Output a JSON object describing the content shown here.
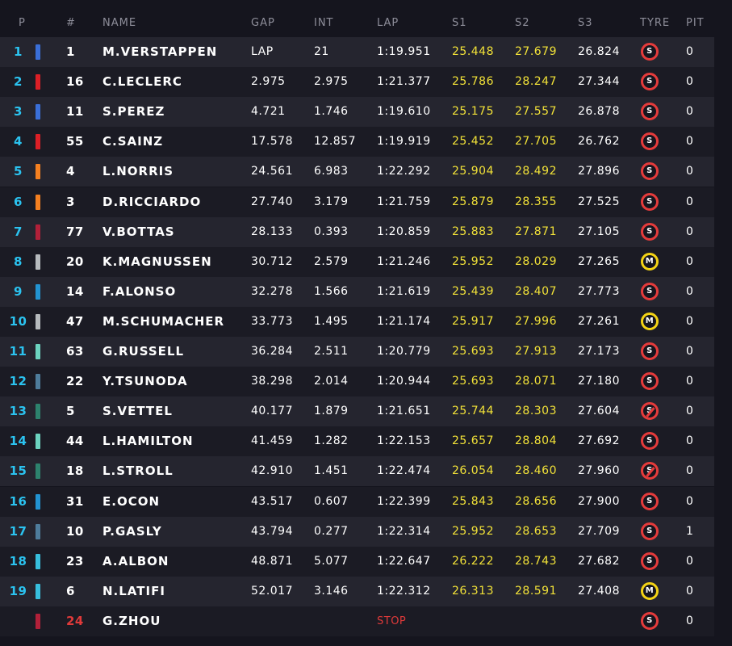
{
  "headers": {
    "pos": "P",
    "num": "#",
    "name": "NAME",
    "gap": "GAP",
    "int": "INT",
    "lap": "LAP",
    "s1": "S1",
    "s2": "S2",
    "s3": "S3",
    "tyre": "TYRE",
    "pit": "PIT"
  },
  "rows": [
    {
      "pos": "1",
      "num": "1",
      "name": "M.VERSTAPPEN",
      "gap": "LAP",
      "int": "21",
      "lap": "1:19.951",
      "s1": "25.448",
      "s2": "27.679",
      "s3": "26.824",
      "tyre": "S",
      "pit": "0",
      "color": "#3a6fd8"
    },
    {
      "pos": "2",
      "num": "16",
      "name": "C.LECLERC",
      "gap": "2.975",
      "int": "2.975",
      "lap": "1:21.377",
      "s1": "25.786",
      "s2": "28.247",
      "s3": "27.344",
      "tyre": "S",
      "pit": "0",
      "color": "#dc1f26"
    },
    {
      "pos": "3",
      "num": "11",
      "name": "S.PEREZ",
      "gap": "4.721",
      "int": "1.746",
      "lap": "1:19.610",
      "s1": "25.175",
      "s2": "27.557",
      "s3": "26.878",
      "tyre": "S",
      "pit": "0",
      "color": "#3a6fd8"
    },
    {
      "pos": "4",
      "num": "55",
      "name": "C.SAINZ",
      "gap": "17.578",
      "int": "12.857",
      "lap": "1:19.919",
      "s1": "25.452",
      "s2": "27.705",
      "s3": "26.762",
      "tyre": "S",
      "pit": "0",
      "color": "#dc1f26"
    },
    {
      "pos": "5",
      "num": "4",
      "name": "L.NORRIS",
      "gap": "24.561",
      "int": "6.983",
      "lap": "1:22.292",
      "s1": "25.904",
      "s2": "28.492",
      "s3": "27.896",
      "tyre": "S",
      "pit": "0",
      "color": "#f58020"
    },
    {
      "pos": "6",
      "num": "3",
      "name": "D.RICCIARDO",
      "gap": "27.740",
      "int": "3.179",
      "lap": "1:21.759",
      "s1": "25.879",
      "s2": "28.355",
      "s3": "27.525",
      "tyre": "S",
      "pit": "0",
      "color": "#f58020"
    },
    {
      "pos": "7",
      "num": "77",
      "name": "V.BOTTAS",
      "gap": "28.133",
      "int": "0.393",
      "lap": "1:20.859",
      "s1": "25.883",
      "s2": "27.871",
      "s3": "27.105",
      "tyre": "S",
      "pit": "0",
      "color": "#b12039"
    },
    {
      "pos": "8",
      "num": "20",
      "name": "K.MAGNUSSEN",
      "gap": "30.712",
      "int": "2.579",
      "lap": "1:21.246",
      "s1": "25.952",
      "s2": "28.029",
      "s3": "27.265",
      "tyre": "M",
      "pit": "0",
      "color": "#b6babd"
    },
    {
      "pos": "9",
      "num": "14",
      "name": "F.ALONSO",
      "gap": "32.278",
      "int": "1.566",
      "lap": "1:21.619",
      "s1": "25.439",
      "s2": "28.407",
      "s3": "27.773",
      "tyre": "S",
      "pit": "0",
      "color": "#2293d1"
    },
    {
      "pos": "10",
      "num": "47",
      "name": "M.SCHUMACHER",
      "gap": "33.773",
      "int": "1.495",
      "lap": "1:21.174",
      "s1": "25.917",
      "s2": "27.996",
      "s3": "27.261",
      "tyre": "M",
      "pit": "0",
      "color": "#b6babd"
    },
    {
      "pos": "11",
      "num": "63",
      "name": "G.RUSSELL",
      "gap": "36.284",
      "int": "2.511",
      "lap": "1:20.779",
      "s1": "25.693",
      "s2": "27.913",
      "s3": "27.173",
      "tyre": "S",
      "pit": "0",
      "color": "#6cd3bf"
    },
    {
      "pos": "12",
      "num": "22",
      "name": "Y.TSUNODA",
      "gap": "38.298",
      "int": "2.014",
      "lap": "1:20.944",
      "s1": "25.693",
      "s2": "28.071",
      "s3": "27.180",
      "tyre": "S",
      "pit": "0",
      "color": "#4e7c9b"
    },
    {
      "pos": "13",
      "num": "5",
      "name": "S.VETTEL",
      "gap": "40.177",
      "int": "1.879",
      "lap": "1:21.651",
      "s1": "25.744",
      "s2": "28.303",
      "s3": "27.604",
      "tyre": "S",
      "used": true,
      "pit": "0",
      "color": "#2d826d"
    },
    {
      "pos": "14",
      "num": "44",
      "name": "L.HAMILTON",
      "gap": "41.459",
      "int": "1.282",
      "lap": "1:22.153",
      "s1": "25.657",
      "s2": "28.804",
      "s3": "27.692",
      "tyre": "S",
      "pit": "0",
      "color": "#6cd3bf"
    },
    {
      "pos": "15",
      "num": "18",
      "name": "L.STROLL",
      "gap": "42.910",
      "int": "1.451",
      "lap": "1:22.474",
      "s1": "26.054",
      "s2": "28.460",
      "s3": "27.960",
      "tyre": "S",
      "used": true,
      "pit": "0",
      "color": "#2d826d"
    },
    {
      "pos": "16",
      "num": "31",
      "name": "E.OCON",
      "gap": "43.517",
      "int": "0.607",
      "lap": "1:22.399",
      "s1": "25.843",
      "s2": "28.656",
      "s3": "27.900",
      "tyre": "S",
      "pit": "0",
      "color": "#2293d1"
    },
    {
      "pos": "17",
      "num": "10",
      "name": "P.GASLY",
      "gap": "43.794",
      "int": "0.277",
      "lap": "1:22.314",
      "s1": "25.952",
      "s2": "28.653",
      "s3": "27.709",
      "tyre": "S",
      "pit": "1",
      "color": "#4e7c9b"
    },
    {
      "pos": "18",
      "num": "23",
      "name": "A.ALBON",
      "gap": "48.871",
      "int": "5.077",
      "lap": "1:22.647",
      "s1": "26.222",
      "s2": "28.743",
      "s3": "27.682",
      "tyre": "S",
      "pit": "0",
      "color": "#37bedd"
    },
    {
      "pos": "19",
      "num": "6",
      "name": "N.LATIFI",
      "gap": "52.017",
      "int": "3.146",
      "lap": "1:22.312",
      "s1": "26.313",
      "s2": "28.591",
      "s3": "27.408",
      "tyre": "M",
      "pit": "0",
      "color": "#37bedd"
    },
    {
      "pos": "",
      "num": "24",
      "name": "G.ZHOU",
      "gap": "",
      "int": "",
      "lap": "STOP",
      "s1": "",
      "s2": "",
      "s3": "",
      "tyre": "S",
      "pit": "0",
      "color": "#b12039",
      "out": true
    }
  ]
}
